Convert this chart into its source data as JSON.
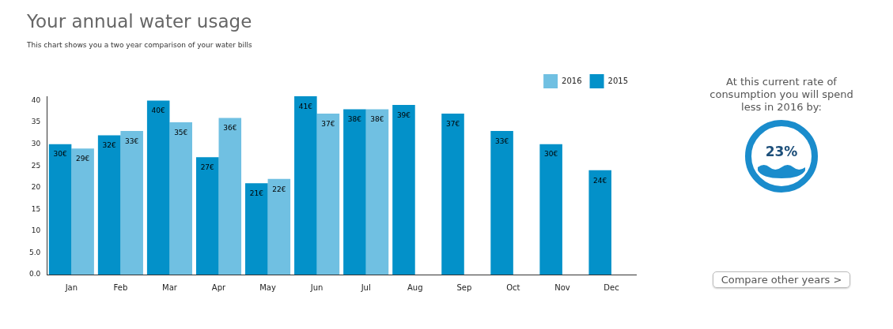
{
  "chart_data": [
    {
      "type": "bar",
      "title": "Your annual water usage",
      "subtitle": "This chart shows you a two year comparison of your water bills",
      "categories": [
        "Jan",
        "Feb",
        "Mar",
        "Apr",
        "May",
        "Jun",
        "Jul",
        "Aug",
        "Sep",
        "Oct",
        "Nov",
        "Dec"
      ],
      "series": [
        {
          "name": "2015",
          "color": "#0391c9",
          "values": [
            30,
            32,
            40,
            27,
            21,
            41,
            38,
            39,
            37,
            33,
            30,
            24
          ],
          "value_labels": [
            "30€",
            "32€",
            "40€",
            "27€",
            "21€",
            "41€",
            "38€",
            "39€",
            "37€",
            "33€",
            "30€",
            "24€"
          ]
        },
        {
          "name": "2016",
          "color": "#70c0e2",
          "values": [
            29,
            33,
            35,
            36,
            22,
            37,
            38,
            null,
            null,
            null,
            null,
            null
          ],
          "value_labels": [
            "29€",
            "33€",
            "35€",
            "36€",
            "22€",
            "37€",
            "38€",
            null,
            null,
            null,
            null,
            null
          ]
        }
      ],
      "ylim": [
        0,
        41
      ],
      "yticks": [
        {
          "value": 0,
          "label": "0.0"
        },
        {
          "value": 5,
          "label": "5.0"
        },
        10,
        15,
        20,
        25,
        30,
        35,
        40
      ],
      "legend": "top right"
    },
    {
      "type": "other",
      "title": "At this current rate of consumption you will spend less in 2016 by:",
      "annotations": [
        "23%",
        "Compare other years >"
      ]
    }
  ]
}
